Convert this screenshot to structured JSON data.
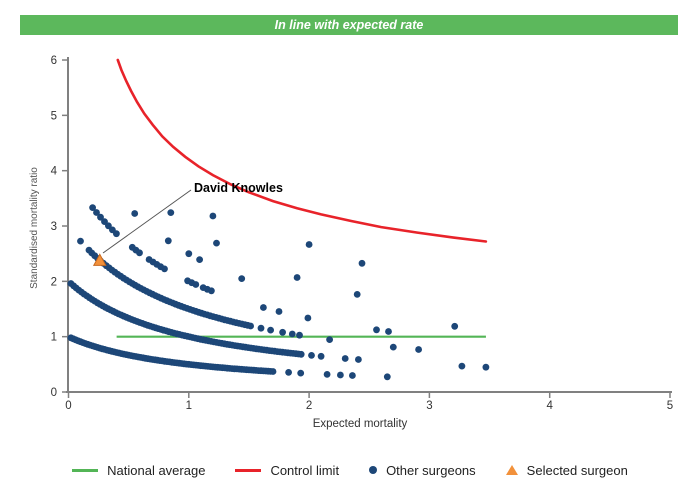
{
  "banner": {
    "text": "In line with expected rate",
    "bg": "#5CB85C"
  },
  "chart_data": {
    "type": "scatter",
    "title": "",
    "xlabel": "Expected mortality",
    "ylabel": "Standardised mortality ratio",
    "xlim": [
      0,
      5
    ],
    "ylim": [
      0,
      6
    ],
    "x_ticks": [
      0,
      1,
      2,
      3,
      4,
      5
    ],
    "y_ticks": [
      0,
      1,
      2,
      3,
      4,
      5,
      6
    ],
    "grid": false,
    "dot_color": "#1D4778",
    "axis_color": "#808080",
    "national_average": {
      "y": 1.0,
      "x_start": 0.4,
      "x_end": 3.47,
      "color": "#53B556"
    },
    "control_limit": {
      "color": "#E8232A",
      "formula": "y = 1 + 3.2/sqrt(x)",
      "points": [
        [
          0.41,
          6.0
        ],
        [
          0.44,
          5.82
        ],
        [
          0.48,
          5.62
        ],
        [
          0.52,
          5.44
        ],
        [
          0.57,
          5.24
        ],
        [
          0.63,
          5.03
        ],
        [
          0.7,
          4.83
        ],
        [
          0.78,
          4.62
        ],
        [
          0.87,
          4.43
        ],
        [
          0.97,
          4.25
        ],
        [
          1.08,
          4.08
        ],
        [
          1.2,
          3.92
        ],
        [
          1.35,
          3.75
        ],
        [
          1.5,
          3.61
        ],
        [
          1.7,
          3.45
        ],
        [
          1.9,
          3.32
        ],
        [
          2.1,
          3.21
        ],
        [
          2.35,
          3.09
        ],
        [
          2.6,
          2.98
        ],
        [
          2.9,
          2.88
        ],
        [
          3.2,
          2.79
        ],
        [
          3.47,
          2.72
        ]
      ]
    },
    "surgeon_bands_note": "Each surgeon dot lies on SMR = deaths/(1+expected); dense segments given as [start,end,step] of expected mortality, extras are single dots",
    "surgeon_bands": [
      {
        "deaths": 1,
        "segments": [
          [
            0.02,
            1.7,
            0.02
          ]
        ],
        "extra": [
          1.83,
          1.93,
          2.15,
          2.26,
          2.36,
          2.65
        ]
      },
      {
        "deaths": 2,
        "segments": [
          [
            0.02,
            1.95,
            0.022
          ]
        ],
        "extra": [
          2.02,
          2.1,
          2.3,
          2.41,
          3.27,
          3.47
        ]
      },
      {
        "deaths": 3,
        "segments": [
          [
            0.17,
            1.52,
            0.024
          ]
        ],
        "extra": [
          0.1,
          1.6,
          1.68,
          1.78,
          1.86,
          1.92,
          2.17,
          2.7,
          2.91
        ]
      },
      {
        "deaths": 4,
        "segments": [
          [
            0.2,
            0.4,
            0.033
          ],
          [
            0.53,
            0.6,
            0.03
          ],
          [
            0.67,
            0.8,
            0.032
          ],
          [
            0.99,
            1.06,
            0.034
          ],
          [
            1.12,
            1.22,
            0.034
          ]
        ],
        "extra": [
          1.62,
          1.75,
          1.99,
          2.56,
          2.66
        ]
      },
      {
        "deaths": 5,
        "segments": [],
        "extra": [
          0.55,
          0.83,
          1.0,
          1.09,
          1.44,
          3.21
        ]
      },
      {
        "deaths": 6,
        "segments": [],
        "extra": [
          0.85,
          1.23,
          1.9,
          2.4
        ]
      },
      {
        "deaths": 7,
        "segments": [],
        "extra": [
          1.2
        ]
      },
      {
        "deaths": 8,
        "segments": [],
        "extra": [
          2.0,
          2.44
        ]
      }
    ],
    "selected_surgeon": {
      "label": "David Knowles",
      "x": 0.26,
      "y": 2.38,
      "color": "#F2913B",
      "edge_color": "#C8681E"
    }
  },
  "legend": {
    "items": [
      {
        "label": "National average",
        "swatch": "line",
        "color": "#53B556"
      },
      {
        "label": "Control limit",
        "swatch": "line",
        "color": "#E8232A"
      },
      {
        "label": "Other surgeons",
        "swatch": "dot",
        "color": "#1D4778"
      },
      {
        "label": "Selected surgeon",
        "swatch": "triangle",
        "color": "#F2913B"
      }
    ]
  }
}
